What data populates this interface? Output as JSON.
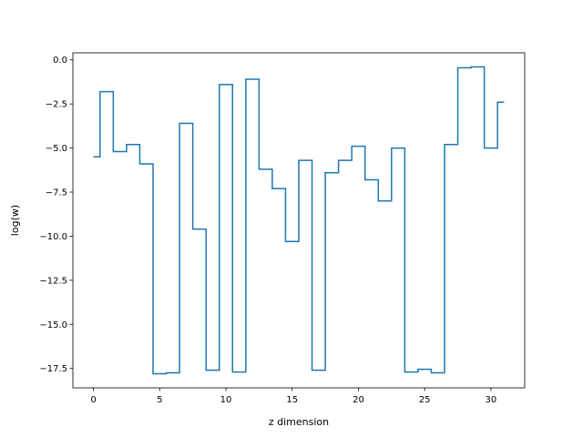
{
  "chart_data": {
    "type": "line",
    "drawstyle": "steps-mid",
    "xlabel": "z dimension",
    "ylabel": "log(w)",
    "xlim": [
      -1.55,
      32.55
    ],
    "ylim": [
      -18.6,
      0.4
    ],
    "xticks": [
      0,
      5,
      10,
      15,
      20,
      25,
      30
    ],
    "xtick_labels": [
      "0",
      "5",
      "10",
      "15",
      "20",
      "25",
      "30"
    ],
    "yticks": [
      0.0,
      -2.5,
      -5.0,
      -7.5,
      -10.0,
      -12.5,
      -15.0,
      -17.5
    ],
    "ytick_labels": [
      "0.0",
      "−2.5",
      "−5.0",
      "−7.5",
      "−10.0",
      "−12.5",
      "−15.0",
      "−17.5"
    ],
    "grid": false,
    "legend": "none",
    "series": [
      {
        "color": "#1f77b4",
        "x": [
          0,
          1,
          2,
          3,
          4,
          5,
          6,
          7,
          8,
          9,
          10,
          11,
          12,
          13,
          14,
          15,
          16,
          17,
          18,
          19,
          20,
          21,
          22,
          23,
          24,
          25,
          26,
          27,
          28,
          29,
          30,
          31
        ],
        "y": [
          -5.5,
          -1.8,
          -5.2,
          -4.8,
          -5.9,
          -17.8,
          -17.75,
          -3.6,
          -9.6,
          -17.6,
          -1.4,
          -17.7,
          -1.1,
          -6.2,
          -7.3,
          -10.3,
          -5.7,
          -17.6,
          -6.4,
          -5.7,
          -4.9,
          -6.8,
          -8.0,
          -5.0,
          -17.7,
          -17.55,
          -17.75,
          -4.8,
          -0.45,
          -0.4,
          -5.0,
          -2.4
        ]
      }
    ]
  }
}
